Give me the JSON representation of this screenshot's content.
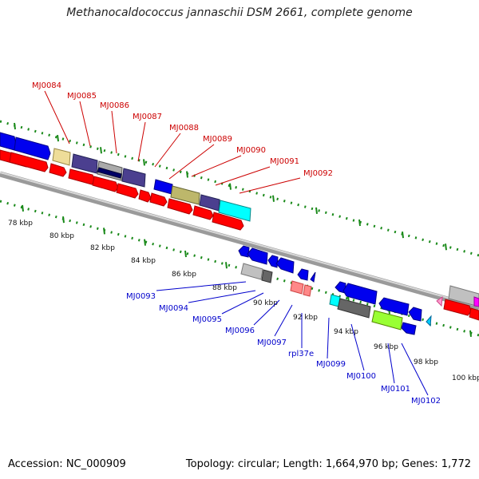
{
  "title": "Methanocaldococcus jannaschii DSM 2661, complete genome",
  "footer": {
    "accession": "Accession: NC_000909",
    "summary": "Topology: circular; Length: 1,664,970 bp; Genes: 1,772"
  },
  "colors": {
    "forward_label": "#cc0000",
    "reverse_label": "#0000cc",
    "ruler": "#1a8a1a",
    "backbone": "#7a7a7a"
  },
  "ruler_labels": [
    "78 kbp",
    "80 kbp",
    "82 kbp",
    "84 kbp",
    "86 kbp",
    "88 kbp",
    "90 kbp",
    "92 kbp",
    "94 kbp",
    "96 kbp",
    "98 kbp",
    "100 kbp"
  ],
  "forward_labels": [
    "MJ0084",
    "MJ0085",
    "MJ0086",
    "MJ0087",
    "MJ0088",
    "MJ0089",
    "MJ0090",
    "MJ0091",
    "MJ0092"
  ],
  "reverse_labels": [
    "MJ0093",
    "MJ0094",
    "MJ0095",
    "MJ0096",
    "MJ0097",
    "rpl37e",
    "MJ0099",
    "MJ0100",
    "MJ0101",
    "MJ0102"
  ]
}
